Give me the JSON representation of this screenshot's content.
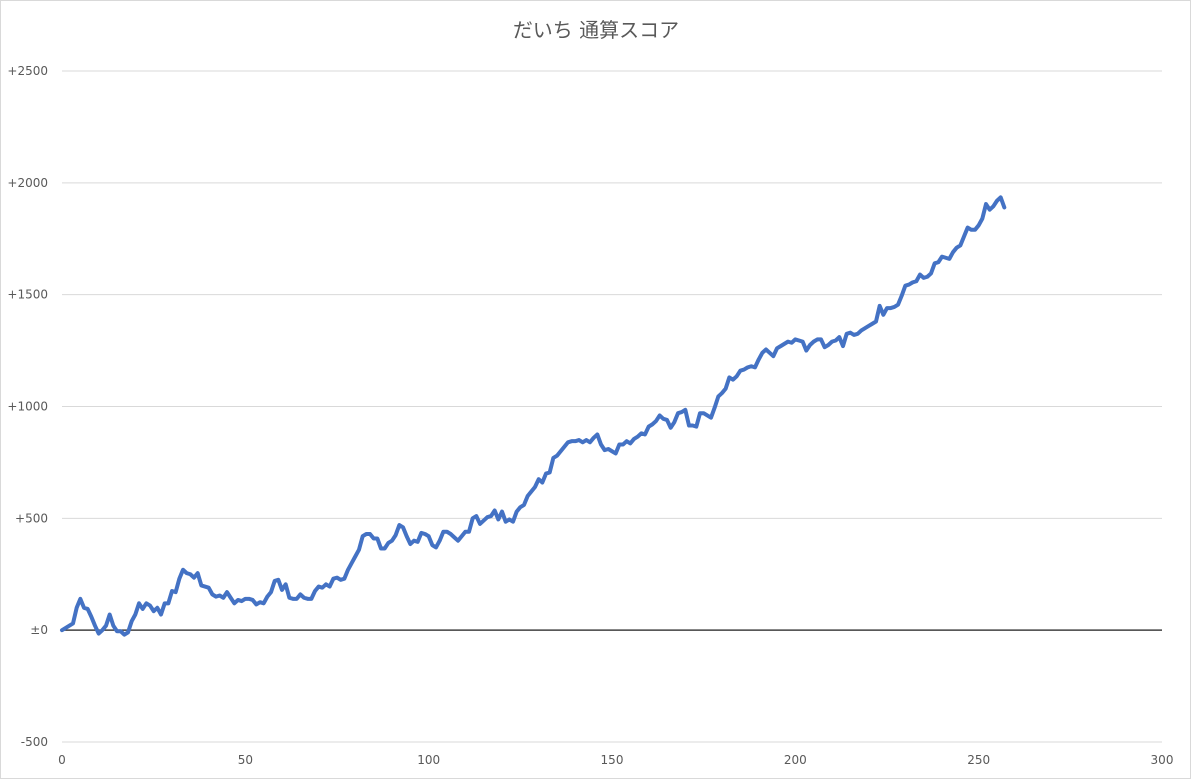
{
  "chart_data": {
    "type": "line",
    "title": "だいち 通算スコア",
    "xlabel": "",
    "ylabel": "",
    "xlim": [
      0,
      300
    ],
    "ylim": [
      -500,
      2500
    ],
    "grid": true,
    "legend": "none",
    "x_ticks": [
      {
        "value": 0,
        "label": "0"
      },
      {
        "value": 50,
        "label": "50"
      },
      {
        "value": 100,
        "label": "100"
      },
      {
        "value": 150,
        "label": "150"
      },
      {
        "value": 200,
        "label": "200"
      },
      {
        "value": 250,
        "label": "250"
      },
      {
        "value": 300,
        "label": "300"
      }
    ],
    "y_ticks": [
      {
        "value": -500,
        "label": "-500"
      },
      {
        "value": 0,
        "label": "±0"
      },
      {
        "value": 500,
        "label": "+500"
      },
      {
        "value": 1000,
        "label": "+1000"
      },
      {
        "value": 1500,
        "label": "+1500"
      },
      {
        "value": 2000,
        "label": "+2000"
      },
      {
        "value": 2500,
        "label": "+2500"
      }
    ],
    "colors": {
      "series": "#4472c4",
      "grid": "#d9d9d9",
      "zero_line": "#404040",
      "text": "#595959",
      "border": "#d9d9d9"
    },
    "series": [
      {
        "points": [
          [
            0,
            0
          ],
          [
            1,
            10
          ],
          [
            2,
            20
          ],
          [
            3,
            30
          ],
          [
            4,
            100
          ],
          [
            5,
            140
          ],
          [
            6,
            100
          ],
          [
            7,
            95
          ],
          [
            8,
            60
          ],
          [
            9,
            20
          ],
          [
            10,
            -15
          ],
          [
            11,
            0
          ],
          [
            12,
            20
          ],
          [
            13,
            70
          ],
          [
            14,
            20
          ],
          [
            15,
            -5
          ],
          [
            16,
            -5
          ],
          [
            17,
            -20
          ],
          [
            18,
            -10
          ],
          [
            19,
            40
          ],
          [
            20,
            70
          ],
          [
            21,
            120
          ],
          [
            22,
            95
          ],
          [
            23,
            120
          ],
          [
            24,
            110
          ],
          [
            25,
            85
          ],
          [
            26,
            100
          ],
          [
            27,
            70
          ],
          [
            28,
            120
          ],
          [
            29,
            120
          ],
          [
            30,
            175
          ],
          [
            31,
            170
          ],
          [
            32,
            230
          ],
          [
            33,
            270
          ],
          [
            34,
            255
          ],
          [
            35,
            250
          ],
          [
            36,
            235
          ],
          [
            37,
            255
          ],
          [
            38,
            200
          ],
          [
            39,
            195
          ],
          [
            40,
            190
          ],
          [
            41,
            160
          ],
          [
            42,
            150
          ],
          [
            43,
            155
          ],
          [
            44,
            145
          ],
          [
            45,
            170
          ],
          [
            46,
            145
          ],
          [
            47,
            120
          ],
          [
            48,
            135
          ],
          [
            49,
            130
          ],
          [
            50,
            140
          ],
          [
            51,
            140
          ],
          [
            52,
            135
          ],
          [
            53,
            115
          ],
          [
            54,
            125
          ],
          [
            55,
            120
          ],
          [
            56,
            150
          ],
          [
            57,
            170
          ],
          [
            58,
            220
          ],
          [
            59,
            225
          ],
          [
            60,
            180
          ],
          [
            61,
            205
          ],
          [
            62,
            145
          ],
          [
            63,
            140
          ],
          [
            64,
            140
          ],
          [
            65,
            160
          ],
          [
            66,
            145
          ],
          [
            67,
            140
          ],
          [
            68,
            140
          ],
          [
            69,
            175
          ],
          [
            70,
            195
          ],
          [
            71,
            190
          ],
          [
            72,
            205
          ],
          [
            73,
            195
          ],
          [
            74,
            230
          ],
          [
            75,
            235
          ],
          [
            76,
            225
          ],
          [
            77,
            230
          ],
          [
            78,
            270
          ],
          [
            79,
            300
          ],
          [
            80,
            330
          ],
          [
            81,
            360
          ],
          [
            82,
            420
          ],
          [
            83,
            430
          ],
          [
            84,
            430
          ],
          [
            85,
            410
          ],
          [
            86,
            410
          ],
          [
            87,
            365
          ],
          [
            88,
            365
          ],
          [
            89,
            390
          ],
          [
            90,
            400
          ],
          [
            91,
            425
          ],
          [
            92,
            470
          ],
          [
            93,
            460
          ],
          [
            94,
            420
          ],
          [
            95,
            385
          ],
          [
            96,
            400
          ],
          [
            97,
            395
          ],
          [
            98,
            435
          ],
          [
            99,
            430
          ],
          [
            100,
            420
          ],
          [
            101,
            380
          ],
          [
            102,
            370
          ],
          [
            103,
            400
          ],
          [
            104,
            440
          ],
          [
            105,
            440
          ],
          [
            106,
            430
          ],
          [
            107,
            415
          ],
          [
            108,
            400
          ],
          [
            109,
            420
          ],
          [
            110,
            440
          ],
          [
            111,
            440
          ],
          [
            112,
            500
          ],
          [
            113,
            510
          ],
          [
            114,
            475
          ],
          [
            115,
            490
          ],
          [
            116,
            505
          ],
          [
            117,
            510
          ],
          [
            118,
            535
          ],
          [
            119,
            495
          ],
          [
            120,
            530
          ],
          [
            121,
            485
          ],
          [
            122,
            495
          ],
          [
            123,
            485
          ],
          [
            124,
            530
          ],
          [
            125,
            550
          ],
          [
            126,
            560
          ],
          [
            127,
            600
          ],
          [
            128,
            620
          ],
          [
            129,
            640
          ],
          [
            130,
            675
          ],
          [
            131,
            660
          ],
          [
            132,
            700
          ],
          [
            133,
            705
          ],
          [
            134,
            770
          ],
          [
            135,
            780
          ],
          [
            136,
            800
          ],
          [
            137,
            820
          ],
          [
            138,
            840
          ],
          [
            139,
            845
          ],
          [
            140,
            845
          ],
          [
            141,
            850
          ],
          [
            142,
            840
          ],
          [
            143,
            850
          ],
          [
            144,
            840
          ],
          [
            145,
            860
          ],
          [
            146,
            875
          ],
          [
            147,
            830
          ],
          [
            148,
            805
          ],
          [
            149,
            810
          ],
          [
            150,
            800
          ],
          [
            151,
            790
          ],
          [
            152,
            830
          ],
          [
            153,
            830
          ],
          [
            154,
            845
          ],
          [
            155,
            835
          ],
          [
            156,
            855
          ],
          [
            157,
            865
          ],
          [
            158,
            880
          ],
          [
            159,
            875
          ],
          [
            160,
            910
          ],
          [
            161,
            920
          ],
          [
            162,
            935
          ],
          [
            163,
            960
          ],
          [
            164,
            945
          ],
          [
            165,
            940
          ],
          [
            166,
            905
          ],
          [
            167,
            930
          ],
          [
            168,
            970
          ],
          [
            169,
            975
          ],
          [
            170,
            985
          ],
          [
            171,
            915
          ],
          [
            172,
            915
          ],
          [
            173,
            910
          ],
          [
            174,
            970
          ],
          [
            175,
            970
          ],
          [
            176,
            960
          ],
          [
            177,
            950
          ],
          [
            178,
            995
          ],
          [
            179,
            1045
          ],
          [
            180,
            1060
          ],
          [
            181,
            1080
          ],
          [
            182,
            1130
          ],
          [
            183,
            1120
          ],
          [
            184,
            1135
          ],
          [
            185,
            1160
          ],
          [
            186,
            1165
          ],
          [
            187,
            1175
          ],
          [
            188,
            1180
          ],
          [
            189,
            1175
          ],
          [
            190,
            1210
          ],
          [
            191,
            1240
          ],
          [
            192,
            1255
          ],
          [
            193,
            1240
          ],
          [
            194,
            1225
          ],
          [
            195,
            1260
          ],
          [
            196,
            1270
          ],
          [
            197,
            1280
          ],
          [
            198,
            1290
          ],
          [
            199,
            1285
          ],
          [
            200,
            1300
          ],
          [
            201,
            1295
          ],
          [
            202,
            1290
          ],
          [
            203,
            1250
          ],
          [
            204,
            1275
          ],
          [
            205,
            1290
          ],
          [
            206,
            1300
          ],
          [
            207,
            1300
          ],
          [
            208,
            1265
          ],
          [
            209,
            1275
          ],
          [
            210,
            1290
          ],
          [
            211,
            1295
          ],
          [
            212,
            1310
          ],
          [
            213,
            1270
          ],
          [
            214,
            1325
          ],
          [
            215,
            1330
          ],
          [
            216,
            1320
          ],
          [
            217,
            1325
          ],
          [
            218,
            1340
          ],
          [
            219,
            1350
          ],
          [
            220,
            1360
          ],
          [
            221,
            1370
          ],
          [
            222,
            1380
          ],
          [
            223,
            1450
          ],
          [
            224,
            1410
          ],
          [
            225,
            1440
          ],
          [
            226,
            1440
          ],
          [
            227,
            1445
          ],
          [
            228,
            1455
          ],
          [
            229,
            1495
          ],
          [
            230,
            1540
          ],
          [
            231,
            1545
          ],
          [
            232,
            1555
          ],
          [
            233,
            1560
          ],
          [
            234,
            1590
          ],
          [
            235,
            1575
          ],
          [
            236,
            1580
          ],
          [
            237,
            1595
          ],
          [
            238,
            1640
          ],
          [
            239,
            1645
          ],
          [
            240,
            1670
          ],
          [
            241,
            1665
          ],
          [
            242,
            1660
          ],
          [
            243,
            1690
          ],
          [
            244,
            1710
          ],
          [
            245,
            1720
          ],
          [
            246,
            1760
          ],
          [
            247,
            1800
          ],
          [
            248,
            1790
          ],
          [
            249,
            1790
          ],
          [
            250,
            1810
          ],
          [
            251,
            1840
          ],
          [
            252,
            1905
          ],
          [
            253,
            1880
          ],
          [
            254,
            1895
          ],
          [
            255,
            1920
          ],
          [
            256,
            1935
          ],
          [
            257,
            1890
          ]
        ]
      }
    ]
  }
}
